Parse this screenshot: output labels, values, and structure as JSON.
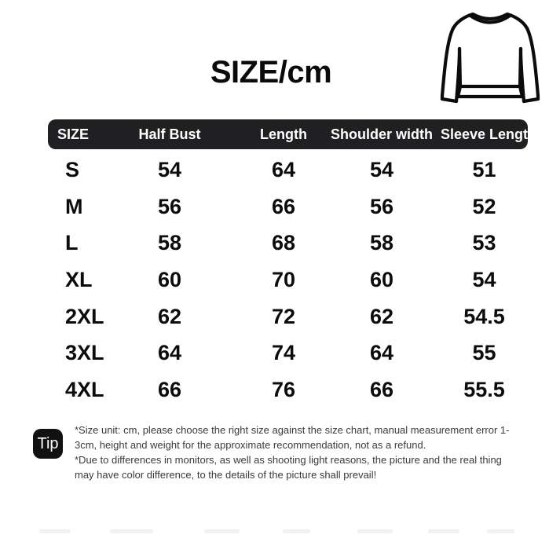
{
  "page": {
    "title": "SIZE/cm"
  },
  "colors": {
    "background": "#ffffff",
    "header_bar_bg": "#202022",
    "header_bar_text": "#ffffff",
    "table_text": "#0c0c0c",
    "tip_badge_bg": "#111111",
    "tip_badge_text": "#ffffff",
    "tip_text": "#3a3a3a"
  },
  "icons": {
    "sweater": "crewneck-sweater-line-drawing"
  },
  "size_chart": {
    "unit": "cm",
    "columns": [
      "SIZE",
      "Half Bust",
      "Length",
      "Shoulder width",
      "Sleeve Length"
    ],
    "rows": [
      {
        "size": "S",
        "values": [
          "54",
          "64",
          "54",
          "51"
        ]
      },
      {
        "size": "M",
        "values": [
          "56",
          "66",
          "56",
          "52"
        ]
      },
      {
        "size": "L",
        "values": [
          "58",
          "68",
          "58",
          "53"
        ]
      },
      {
        "size": "XL",
        "values": [
          "60",
          "70",
          "60",
          "54"
        ]
      },
      {
        "size": "2XL",
        "values": [
          "62",
          "72",
          "62",
          "54.5"
        ]
      },
      {
        "size": "3XL",
        "values": [
          "64",
          "74",
          "64",
          "55"
        ]
      },
      {
        "size": "4XL",
        "values": [
          "66",
          "76",
          "66",
          "55.5"
        ]
      }
    ]
  },
  "tip": {
    "badge": "Tip",
    "lines": [
      "*Size unit: cm, please choose the right size against the size chart, manual measurement error 1-3cm, height and weight for the approximate recommendation, not as a refund.",
      "*Due to differences in monitors, as well as shooting light reasons, the picture and the real thing may have color difference, to the details of the picture shall prevail!"
    ]
  },
  "chart_data": {
    "type": "table",
    "title": "SIZE/cm",
    "columns": [
      "SIZE",
      "Half Bust",
      "Length",
      "Shoulder width",
      "Sleeve Length"
    ],
    "rows": [
      [
        "S",
        54,
        64,
        54,
        51
      ],
      [
        "M",
        56,
        66,
        56,
        52
      ],
      [
        "L",
        58,
        68,
        58,
        53
      ],
      [
        "XL",
        60,
        70,
        60,
        54
      ],
      [
        "2XL",
        62,
        72,
        62,
        54.5
      ],
      [
        "3XL",
        64,
        74,
        64,
        55
      ],
      [
        "4XL",
        66,
        76,
        66,
        55.5
      ]
    ]
  }
}
